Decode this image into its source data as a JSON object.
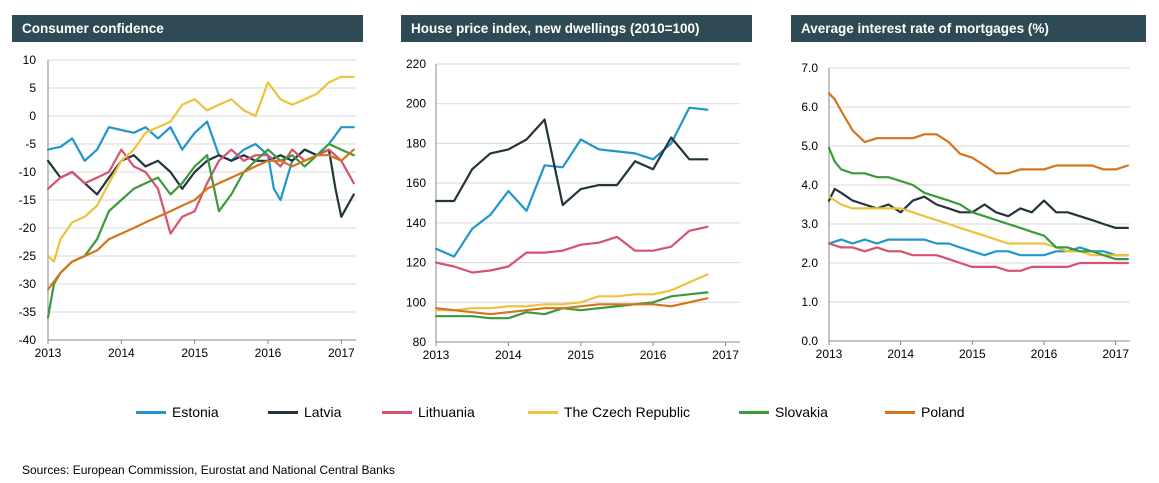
{
  "colors": {
    "Estonia": "#2196c8",
    "Latvia": "#22343c",
    "Lithuania": "#d4536e",
    "The Czech Republic": "#eec23e",
    "Slovakia": "#3a9a3a",
    "Poland": "#d4751e",
    "header_bg": "#2e4a54"
  },
  "legend": [
    "Estonia",
    "Latvia",
    "Lithuania",
    "The Czech Republic",
    "Slovakia",
    "Poland"
  ],
  "source": "Sources: European Commission, Eurostat and National Central Banks",
  "chart_data": [
    {
      "type": "line",
      "title": "Consumer confidence",
      "xlabel": "",
      "ylabel": "",
      "x_ticks": [
        "2013",
        "2014",
        "2015",
        "2016",
        "2017"
      ],
      "y_ticks": [
        "10",
        "5",
        "0",
        "-5",
        "-10",
        "-15",
        "-20",
        "-25",
        "-30",
        "-35",
        "-40"
      ],
      "xlim": [
        2013,
        2017.2
      ],
      "ylim": [
        -40,
        10
      ],
      "grid": true,
      "series": [
        {
          "name": "Estonia",
          "x": [
            2013.0,
            2013.17,
            2013.33,
            2013.5,
            2013.67,
            2013.83,
            2014.0,
            2014.17,
            2014.33,
            2014.5,
            2014.67,
            2014.83,
            2015.0,
            2015.17,
            2015.33,
            2015.5,
            2015.67,
            2015.83,
            2016.0,
            2016.08,
            2016.17,
            2016.33,
            2016.5,
            2016.67,
            2016.83,
            2017.0,
            2017.17
          ],
          "y": [
            -6,
            -5.5,
            -4,
            -8,
            -6,
            -2,
            -2.5,
            -3,
            -2,
            -4,
            -2,
            -6,
            -3,
            -1,
            -7,
            -8,
            -6,
            -5,
            -7,
            -13,
            -15,
            -8,
            -6,
            -7,
            -5,
            -2,
            -2
          ]
        },
        {
          "name": "Latvia",
          "x": [
            2013.0,
            2013.17,
            2013.33,
            2013.5,
            2013.67,
            2013.83,
            2014.0,
            2014.17,
            2014.33,
            2014.5,
            2014.67,
            2014.83,
            2015.0,
            2015.17,
            2015.33,
            2015.5,
            2015.67,
            2015.83,
            2016.0,
            2016.17,
            2016.33,
            2016.5,
            2016.67,
            2016.83,
            2016.92,
            2017.0,
            2017.17
          ],
          "y": [
            -8,
            -11,
            -10,
            -12,
            -14,
            -11,
            -8,
            -7,
            -9,
            -8,
            -10,
            -13,
            -10,
            -8,
            -7,
            -8,
            -7,
            -8,
            -8,
            -7,
            -8,
            -6,
            -7,
            -6,
            -13,
            -18,
            -14
          ]
        },
        {
          "name": "Lithuania",
          "x": [
            2013.0,
            2013.17,
            2013.33,
            2013.5,
            2013.67,
            2013.83,
            2014.0,
            2014.17,
            2014.33,
            2014.5,
            2014.67,
            2014.83,
            2015.0,
            2015.17,
            2015.33,
            2015.5,
            2015.67,
            2015.83,
            2016.0,
            2016.17,
            2016.33,
            2016.5,
            2016.67,
            2016.83,
            2017.0,
            2017.17
          ],
          "y": [
            -13,
            -11,
            -10,
            -12,
            -11,
            -10,
            -6,
            -9,
            -10,
            -13,
            -21,
            -18,
            -17,
            -12,
            -8,
            -6,
            -8,
            -7,
            -7,
            -9,
            -6,
            -8,
            -7,
            -6,
            -8,
            -12
          ]
        },
        {
          "name": "The Czech Republic",
          "x": [
            2013.0,
            2013.08,
            2013.17,
            2013.33,
            2013.5,
            2013.67,
            2013.83,
            2014.0,
            2014.17,
            2014.33,
            2014.5,
            2014.67,
            2014.83,
            2015.0,
            2015.17,
            2015.33,
            2015.5,
            2015.67,
            2015.83,
            2016.0,
            2016.17,
            2016.33,
            2016.5,
            2016.67,
            2016.83,
            2017.0,
            2017.17
          ],
          "y": [
            -25,
            -26,
            -22,
            -19,
            -18,
            -16,
            -12,
            -8,
            -6,
            -3,
            -2,
            -1,
            2,
            3,
            1,
            2,
            3,
            1,
            0,
            6,
            3,
            2,
            3,
            4,
            6,
            7,
            7
          ]
        },
        {
          "name": "Slovakia",
          "x": [
            2013.0,
            2013.08,
            2013.17,
            2013.33,
            2013.5,
            2013.67,
            2013.83,
            2014.0,
            2014.17,
            2014.33,
            2014.5,
            2014.67,
            2014.83,
            2015.0,
            2015.17,
            2015.33,
            2015.5,
            2015.67,
            2015.83,
            2016.0,
            2016.17,
            2016.33,
            2016.5,
            2016.67,
            2016.83,
            2017.0,
            2017.17
          ],
          "y": [
            -36,
            -30,
            -28,
            -26,
            -25,
            -22,
            -17,
            -15,
            -13,
            -12,
            -11,
            -14,
            -12,
            -9,
            -7,
            -17,
            -14,
            -10,
            -8,
            -6,
            -8,
            -7,
            -9,
            -7,
            -5,
            -6,
            -7
          ]
        },
        {
          "name": "Poland",
          "x": [
            2013.0,
            2013.17,
            2013.33,
            2013.5,
            2013.67,
            2013.83,
            2014.0,
            2014.17,
            2014.33,
            2014.5,
            2014.67,
            2014.83,
            2015.0,
            2015.17,
            2015.33,
            2015.5,
            2015.67,
            2015.83,
            2016.0,
            2016.17,
            2016.33,
            2016.5,
            2016.67,
            2016.83,
            2017.0,
            2017.17
          ],
          "y": [
            -31,
            -28,
            -26,
            -25,
            -24,
            -22,
            -21,
            -20,
            -19,
            -18,
            -17,
            -16,
            -15,
            -13,
            -12,
            -11,
            -10,
            -9,
            -8,
            -8,
            -9,
            -8,
            -7,
            -7,
            -8,
            -6
          ]
        }
      ]
    },
    {
      "type": "line",
      "title": "House price index, new dwellings (2010=100)",
      "xlabel": "",
      "ylabel": "",
      "x_ticks": [
        "2013",
        "2014",
        "2015",
        "2016",
        "2017"
      ],
      "y_ticks": [
        "220",
        "200",
        "180",
        "160",
        "140",
        "120",
        "100",
        "80"
      ],
      "xlim": [
        2013,
        2017.2
      ],
      "ylim": [
        80,
        220
      ],
      "grid": true,
      "series": [
        {
          "name": "Estonia",
          "x": [
            2013.0,
            2013.25,
            2013.5,
            2013.75,
            2014.0,
            2014.25,
            2014.5,
            2014.75,
            2015.0,
            2015.25,
            2015.5,
            2015.75,
            2016.0,
            2016.25,
            2016.5,
            2016.75
          ],
          "y": [
            127,
            123,
            137,
            144,
            156,
            146,
            169,
            168,
            182,
            177,
            176,
            175,
            172,
            180,
            198,
            197
          ]
        },
        {
          "name": "Latvia",
          "x": [
            2013.0,
            2013.25,
            2013.5,
            2013.75,
            2014.0,
            2014.25,
            2014.5,
            2014.75,
            2015.0,
            2015.25,
            2015.5,
            2015.75,
            2016.0,
            2016.25,
            2016.5,
            2016.75
          ],
          "y": [
            151,
            151,
            167,
            175,
            177,
            182,
            192,
            149,
            157,
            159,
            159,
            171,
            167,
            183,
            172,
            172
          ]
        },
        {
          "name": "Lithuania",
          "x": [
            2013.0,
            2013.25,
            2013.5,
            2013.75,
            2014.0,
            2014.25,
            2014.5,
            2014.75,
            2015.0,
            2015.25,
            2015.5,
            2015.75,
            2016.0,
            2016.25,
            2016.5,
            2016.75
          ],
          "y": [
            120,
            118,
            115,
            116,
            118,
            125,
            125,
            126,
            129,
            130,
            133,
            126,
            126,
            128,
            136,
            138
          ]
        },
        {
          "name": "The Czech Republic",
          "x": [
            2013.0,
            2013.25,
            2013.5,
            2013.75,
            2014.0,
            2014.25,
            2014.5,
            2014.75,
            2015.0,
            2015.25,
            2015.5,
            2015.75,
            2016.0,
            2016.25,
            2016.5,
            2016.75
          ],
          "y": [
            96,
            96,
            97,
            97,
            98,
            98,
            99,
            99,
            100,
            103,
            103,
            104,
            104,
            106,
            110,
            114
          ]
        },
        {
          "name": "Slovakia",
          "x": [
            2013.0,
            2013.25,
            2013.5,
            2013.75,
            2014.0,
            2014.25,
            2014.5,
            2014.75,
            2015.0,
            2015.25,
            2015.5,
            2015.75,
            2016.0,
            2016.25,
            2016.5,
            2016.75
          ],
          "y": [
            93,
            93,
            93,
            92,
            92,
            95,
            94,
            97,
            96,
            97,
            98,
            99,
            100,
            103,
            104,
            105
          ]
        },
        {
          "name": "Poland",
          "x": [
            2013.0,
            2013.25,
            2013.5,
            2013.75,
            2014.0,
            2014.25,
            2014.5,
            2014.75,
            2015.0,
            2015.25,
            2015.5,
            2015.75,
            2016.0,
            2016.25,
            2016.5,
            2016.75
          ],
          "y": [
            97,
            96,
            95,
            94,
            95,
            96,
            97,
            97,
            98,
            99,
            99,
            99,
            99,
            98,
            100,
            102
          ]
        }
      ]
    },
    {
      "type": "line",
      "title": "Average interest rate of mortgages (%)",
      "xlabel": "",
      "ylabel": "",
      "x_ticks": [
        "2013",
        "2014",
        "2015",
        "2016",
        "2017"
      ],
      "y_ticks": [
        "7.0",
        "6.0",
        "5.0",
        "4.0",
        "3.0",
        "2.0",
        "1.0",
        "0.0"
      ],
      "xlim": [
        2013,
        2017.2
      ],
      "ylim": [
        0,
        7
      ],
      "grid": true,
      "series": [
        {
          "name": "Estonia",
          "x": [
            2013.0,
            2013.17,
            2013.33,
            2013.5,
            2013.67,
            2013.83,
            2014.0,
            2014.17,
            2014.33,
            2014.5,
            2014.67,
            2014.83,
            2015.0,
            2015.17,
            2015.33,
            2015.5,
            2015.67,
            2015.83,
            2016.0,
            2016.17,
            2016.33,
            2016.5,
            2016.67,
            2016.83,
            2017.0,
            2017.17
          ],
          "y": [
            2.5,
            2.6,
            2.5,
            2.6,
            2.5,
            2.6,
            2.6,
            2.6,
            2.6,
            2.5,
            2.5,
            2.4,
            2.3,
            2.2,
            2.3,
            2.3,
            2.2,
            2.2,
            2.2,
            2.3,
            2.3,
            2.4,
            2.3,
            2.3,
            2.2,
            2.2
          ]
        },
        {
          "name": "Latvia",
          "x": [
            2013.0,
            2013.08,
            2013.17,
            2013.33,
            2013.5,
            2013.67,
            2013.83,
            2014.0,
            2014.17,
            2014.33,
            2014.5,
            2014.67,
            2014.83,
            2015.0,
            2015.17,
            2015.33,
            2015.5,
            2015.67,
            2015.83,
            2016.0,
            2016.17,
            2016.33,
            2016.5,
            2016.67,
            2016.83,
            2017.0,
            2017.17
          ],
          "y": [
            3.6,
            3.9,
            3.8,
            3.6,
            3.5,
            3.4,
            3.5,
            3.3,
            3.6,
            3.7,
            3.5,
            3.4,
            3.3,
            3.3,
            3.5,
            3.3,
            3.2,
            3.4,
            3.3,
            3.6,
            3.3,
            3.3,
            3.2,
            3.1,
            3.0,
            2.9,
            2.9
          ]
        },
        {
          "name": "Lithuania",
          "x": [
            2013.0,
            2013.17,
            2013.33,
            2013.5,
            2013.67,
            2013.83,
            2014.0,
            2014.17,
            2014.33,
            2014.5,
            2014.67,
            2014.83,
            2015.0,
            2015.17,
            2015.33,
            2015.5,
            2015.67,
            2015.83,
            2016.0,
            2016.17,
            2016.33,
            2016.5,
            2016.67,
            2016.83,
            2017.0,
            2017.17
          ],
          "y": [
            2.5,
            2.4,
            2.4,
            2.3,
            2.4,
            2.3,
            2.3,
            2.2,
            2.2,
            2.2,
            2.1,
            2.0,
            1.9,
            1.9,
            1.9,
            1.8,
            1.8,
            1.9,
            1.9,
            1.9,
            1.9,
            2.0,
            2.0,
            2.0,
            2.0,
            2.0
          ]
        },
        {
          "name": "The Czech Republic",
          "x": [
            2013.0,
            2013.17,
            2013.33,
            2013.5,
            2013.67,
            2013.83,
            2014.0,
            2014.17,
            2014.33,
            2014.5,
            2014.67,
            2014.83,
            2015.0,
            2015.17,
            2015.33,
            2015.5,
            2015.67,
            2015.83,
            2016.0,
            2016.17,
            2016.33,
            2016.5,
            2016.67,
            2016.83,
            2017.0,
            2017.17
          ],
          "y": [
            3.7,
            3.5,
            3.4,
            3.4,
            3.4,
            3.4,
            3.4,
            3.3,
            3.2,
            3.1,
            3.0,
            2.9,
            2.8,
            2.7,
            2.6,
            2.5,
            2.5,
            2.5,
            2.5,
            2.4,
            2.3,
            2.3,
            2.2,
            2.2,
            2.2,
            2.2
          ]
        },
        {
          "name": "Slovakia",
          "x": [
            2013.0,
            2013.08,
            2013.17,
            2013.33,
            2013.5,
            2013.67,
            2013.83,
            2014.0,
            2014.17,
            2014.33,
            2014.5,
            2014.67,
            2014.83,
            2015.0,
            2015.17,
            2015.33,
            2015.5,
            2015.67,
            2015.83,
            2016.0,
            2016.17,
            2016.33,
            2016.5,
            2016.67,
            2016.83,
            2017.0,
            2017.17
          ],
          "y": [
            4.95,
            4.6,
            4.4,
            4.3,
            4.3,
            4.2,
            4.2,
            4.1,
            4.0,
            3.8,
            3.7,
            3.6,
            3.5,
            3.3,
            3.2,
            3.1,
            3.0,
            2.9,
            2.8,
            2.7,
            2.4,
            2.4,
            2.3,
            2.3,
            2.2,
            2.1,
            2.1
          ]
        },
        {
          "name": "Poland",
          "x": [
            2013.0,
            2013.08,
            2013.17,
            2013.33,
            2013.5,
            2013.67,
            2013.83,
            2014.0,
            2014.17,
            2014.33,
            2014.5,
            2014.67,
            2014.83,
            2015.0,
            2015.17,
            2015.33,
            2015.5,
            2015.67,
            2015.83,
            2016.0,
            2016.17,
            2016.33,
            2016.5,
            2016.67,
            2016.83,
            2017.0,
            2017.17
          ],
          "y": [
            6.35,
            6.2,
            5.9,
            5.4,
            5.1,
            5.2,
            5.2,
            5.2,
            5.2,
            5.3,
            5.3,
            5.1,
            4.8,
            4.7,
            4.5,
            4.3,
            4.3,
            4.4,
            4.4,
            4.4,
            4.5,
            4.5,
            4.5,
            4.5,
            4.4,
            4.4,
            4.5
          ]
        }
      ]
    }
  ]
}
